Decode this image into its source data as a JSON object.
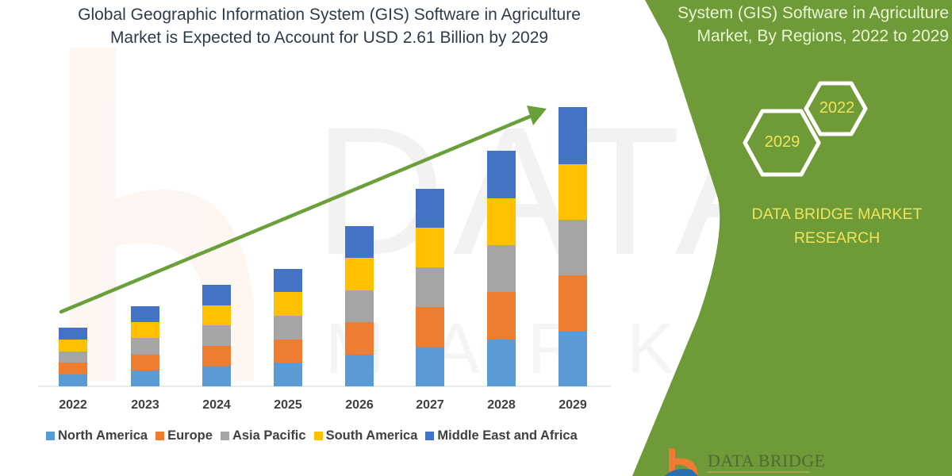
{
  "title": {
    "line1": "Global Geographic Information System (GIS) Software in Agriculture",
    "line2": "Market is Expected to Account for USD 2.61 Billion by 2029"
  },
  "side_panel": {
    "title_line1": "System (GIS) Software in Agriculture",
    "title_line2": "Market, By Regions, 2022 to 2029",
    "hex_start_year": "2022",
    "hex_end_year": "2029",
    "brand_line1": "DATA BRIDGE MARKET",
    "brand_line2": "RESEARCH",
    "logo_text": "DATA BRIDGE",
    "background_color": "#6e9a37"
  },
  "colors": {
    "North America": "#5b9bd5",
    "Europe": "#ed7d31",
    "Asia Pacific": "#a5a5a5",
    "South America": "#ffc000",
    "Middle East and Africa": "#4472c4",
    "trend_arrow": "#6aa03a"
  },
  "chart_data": {
    "type": "bar",
    "stacked": true,
    "title": "Global Geographic Information System (GIS) Software in Agriculture Market is Expected to Account for USD 2.61 Billion by 2029",
    "xlabel": "",
    "ylabel": "",
    "units": "USD Billion (estimated from bar heights; 2029 total = 2.61)",
    "categories": [
      "2022",
      "2023",
      "2024",
      "2025",
      "2026",
      "2027",
      "2028",
      "2029"
    ],
    "series": [
      {
        "name": "North America",
        "values": [
          0.11,
          0.15,
          0.19,
          0.22,
          0.3,
          0.37,
          0.44,
          0.52
        ]
      },
      {
        "name": "Europe",
        "values": [
          0.11,
          0.15,
          0.19,
          0.22,
          0.3,
          0.37,
          0.44,
          0.52
        ]
      },
      {
        "name": "Asia Pacific",
        "values": [
          0.11,
          0.15,
          0.19,
          0.22,
          0.3,
          0.37,
          0.44,
          0.52
        ]
      },
      {
        "name": "South America",
        "values": [
          0.11,
          0.15,
          0.19,
          0.22,
          0.3,
          0.37,
          0.44,
          0.52
        ]
      },
      {
        "name": "Middle East and Africa",
        "values": [
          0.11,
          0.15,
          0.19,
          0.22,
          0.3,
          0.37,
          0.44,
          0.53
        ]
      }
    ],
    "totals": [
      0.56,
      0.74,
      0.93,
      1.11,
      1.48,
      1.85,
      2.22,
      2.61
    ],
    "legend": [
      "North America",
      "Europe",
      "Asia Pacific",
      "South America",
      "Middle East and Africa"
    ],
    "legend_position": "bottom",
    "grid": false,
    "annotations": [
      "Upward green trend arrow from 2022 to 2029"
    ]
  }
}
